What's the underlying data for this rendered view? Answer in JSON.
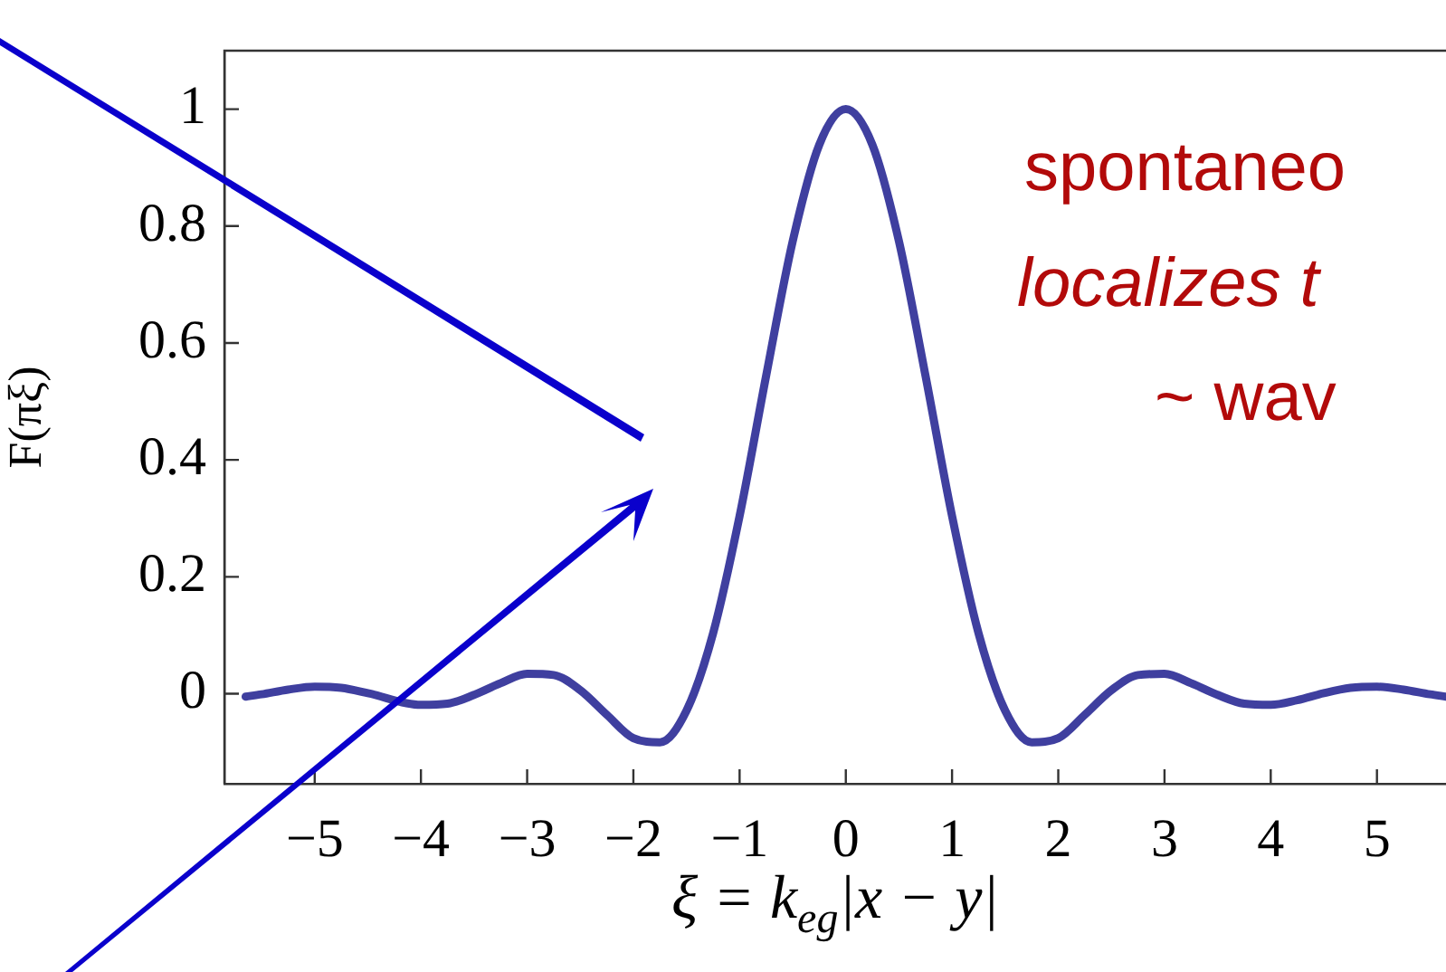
{
  "chart_data": {
    "type": "line",
    "xlabel": "ξ = k$_{eg}$|x − y|",
    "ylabel": "F(πξ)",
    "x": [
      -5.65,
      -5.5,
      -5.25,
      -5,
      -4.75,
      -4.5,
      -4,
      -3.75,
      -3.5,
      -3.25,
      -3,
      -2.75,
      -2.5,
      -2.25,
      -2,
      -1.75,
      -1.5,
      -1.25,
      -1,
      -0.75,
      -0.5,
      -0.25,
      0,
      0.25,
      0.5,
      0.75,
      1,
      1.25,
      1.5,
      1.75,
      2,
      2.25,
      2.5,
      2.75,
      3,
      3.25,
      3.5,
      3.75,
      4,
      4.25,
      4.5,
      4.75,
      5,
      5.25,
      5.5,
      5.65
    ],
    "series": [
      {
        "color": "#3f3f9f",
        "values": [
          -0.005,
          -0.001,
          0.007,
          0.012,
          0.01,
          0.001,
          -0.019,
          -0.017,
          -0.002,
          0.018,
          0.034,
          0.032,
          0.006,
          -0.036,
          -0.076,
          -0.083,
          -0.029,
          0.103,
          0.304,
          0.544,
          0.774,
          0.939,
          1,
          0.939,
          0.774,
          0.544,
          0.304,
          0.103,
          -0.029,
          -0.083,
          -0.076,
          -0.036,
          0.006,
          0.032,
          0.034,
          0.018,
          -0.002,
          -0.017,
          -0.019,
          -0.011,
          0.001,
          0.01,
          0.012,
          0.007,
          -0.001,
          -0.005
        ]
      }
    ],
    "xlim": [
      -5.85,
      5.65
    ],
    "ylim": [
      -0.154,
      1.1
    ],
    "xticks": [
      {
        "value": -5,
        "label": "−5"
      },
      {
        "value": -4,
        "label": "−4"
      },
      {
        "value": -3,
        "label": "−3"
      },
      {
        "value": -2,
        "label": "−2"
      },
      {
        "value": -1,
        "label": "−1"
      },
      0,
      1,
      2,
      3,
      4,
      5
    ],
    "yticks": [
      0,
      0.2,
      0.4,
      0.6,
      0.8,
      1
    ],
    "grid": false,
    "legend": false,
    "marker": "none",
    "line_style": "solid",
    "annotations": [
      "spontaneo",
      "localizes t",
      "~ wav"
    ]
  }
}
